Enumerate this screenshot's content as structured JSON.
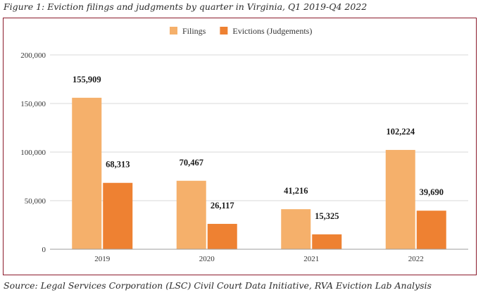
{
  "figure": {
    "title": "Figure 1: Eviction filings and judgments by quarter in Virginia, Q1 2019-Q4 2022",
    "source": "Source: Legal Services Corporation (LSC) Civil Court Data Initiative, RVA Eviction Lab Analysis"
  },
  "colors": {
    "filings": "#F5B06B",
    "evictions": "#EE8132",
    "frame": "#8B1A2B",
    "grid": "#D9D9D9",
    "axis": "#9E9E9E"
  },
  "chart_data": {
    "type": "bar",
    "title": "",
    "xlabel": "",
    "ylabel": "",
    "categories": [
      "2019",
      "2020",
      "2021",
      "2022"
    ],
    "series": [
      {
        "name": "Filings",
        "values": [
          155909,
          70467,
          41216,
          102224
        ]
      },
      {
        "name": "Evictions (Judgements)",
        "values": [
          68313,
          26117,
          15325,
          39690
        ]
      }
    ],
    "data_labels": [
      [
        "155,909",
        "70,467",
        "41,216",
        "102,224"
      ],
      [
        "68,313",
        "26,117",
        "15,325",
        "39,690"
      ]
    ],
    "ylim": [
      0,
      200000
    ],
    "yticks": [
      0,
      50000,
      100000,
      150000,
      200000
    ],
    "ytick_labels": [
      "0",
      "50,000",
      "100,000",
      "150,000",
      "200,000"
    ],
    "grid": true,
    "legend_position": "top-center"
  }
}
